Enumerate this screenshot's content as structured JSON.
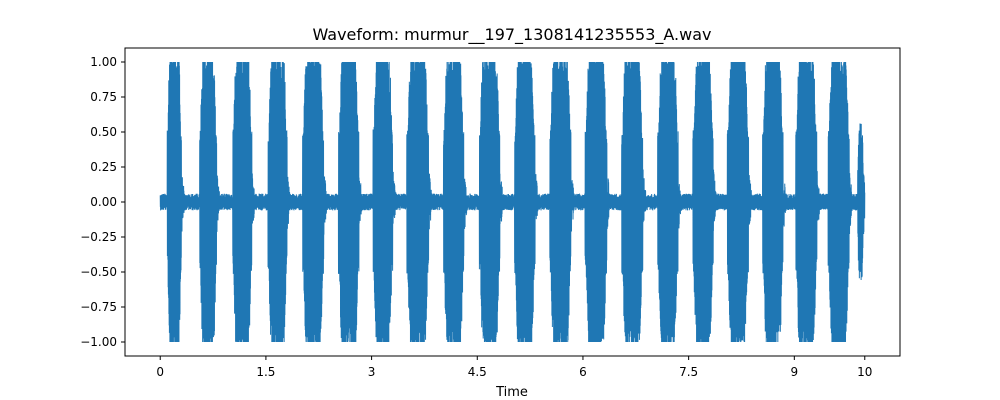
{
  "chart_data": {
    "type": "line",
    "title": "Waveform: murmur__197_1308141235553_A.wav",
    "xlabel": "Time",
    "ylabel": "",
    "xlim": [
      -0.5,
      10.5
    ],
    "ylim": [
      -1.1,
      1.1
    ],
    "xticks": [
      0,
      1.5,
      3,
      4.5,
      6,
      7.5,
      9,
      10
    ],
    "xtick_labels": [
      "0",
      "1.5",
      "3",
      "4.5",
      "6",
      "7.5",
      "9",
      "10"
    ],
    "yticks": [
      1.0,
      0.75,
      0.5,
      0.25,
      0.0,
      -0.25,
      -0.5,
      -0.75,
      -1.0
    ],
    "ytick_labels": [
      "1.00",
      "0.75",
      "0.50",
      "0.25",
      "0.00",
      "−0.25",
      "−0.50",
      "−0.75",
      "−1.00"
    ],
    "grid": false,
    "color": "#1f77b4",
    "duration": 10.0,
    "baseline_amplitude": 0.06,
    "bursts": [
      {
        "start": 0.1,
        "end": 0.3,
        "amplitude": 1.0
      },
      {
        "start": 0.56,
        "end": 0.8,
        "amplitude": 1.0
      },
      {
        "start": 1.03,
        "end": 1.3,
        "amplitude": 1.0
      },
      {
        "start": 1.53,
        "end": 1.8,
        "amplitude": 1.0
      },
      {
        "start": 2.02,
        "end": 2.32,
        "amplitude": 1.0
      },
      {
        "start": 2.53,
        "end": 2.82,
        "amplitude": 1.0
      },
      {
        "start": 3.02,
        "end": 3.3,
        "amplitude": 1.0
      },
      {
        "start": 3.5,
        "end": 3.81,
        "amplitude": 1.0
      },
      {
        "start": 4.02,
        "end": 4.31,
        "amplitude": 1.0
      },
      {
        "start": 4.53,
        "end": 4.82,
        "amplitude": 1.0
      },
      {
        "start": 5.03,
        "end": 5.32,
        "amplitude": 1.0
      },
      {
        "start": 5.53,
        "end": 5.83,
        "amplitude": 1.0
      },
      {
        "start": 6.03,
        "end": 6.34,
        "amplitude": 1.0
      },
      {
        "start": 6.55,
        "end": 6.85,
        "amplitude": 1.0
      },
      {
        "start": 7.06,
        "end": 7.35,
        "amplitude": 1.0
      },
      {
        "start": 7.56,
        "end": 7.85,
        "amplitude": 1.0
      },
      {
        "start": 8.05,
        "end": 8.35,
        "amplitude": 1.0
      },
      {
        "start": 8.55,
        "end": 8.84,
        "amplitude": 1.0
      },
      {
        "start": 9.02,
        "end": 9.32,
        "amplitude": 1.0
      },
      {
        "start": 9.48,
        "end": 9.78,
        "amplitude": 1.0
      },
      {
        "start": 9.9,
        "end": 9.98,
        "amplitude": 0.49
      }
    ]
  }
}
